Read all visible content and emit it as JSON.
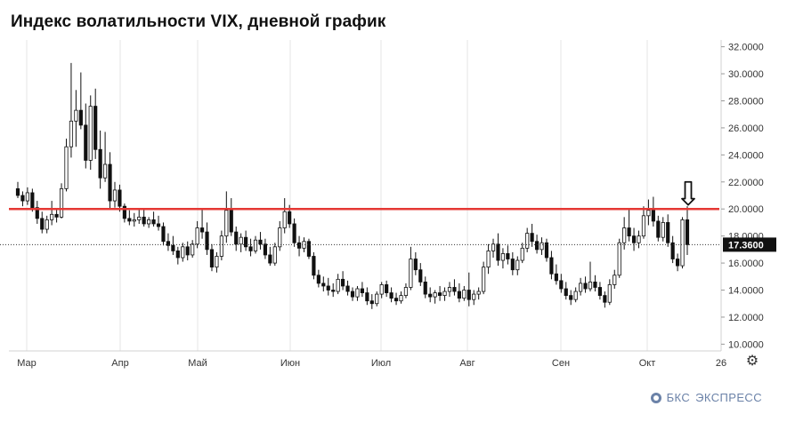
{
  "title": "Индекс волатильности VIX, дневной график",
  "brand": {
    "prefix": "БКС",
    "name": "ЭКСПРЕСС"
  },
  "icons": {
    "settings": "gear-icon",
    "arrow": "down-arrow-icon"
  },
  "colors": {
    "level_line": "#e53935",
    "candle": "#111111",
    "grid": "#e6e6e6",
    "price_label_bg": "#111111"
  },
  "chart_data": {
    "type": "candlestick",
    "title": "Индекс волатильности VIX, дневной график",
    "y_ticks": [
      "10.0000",
      "12.0000",
      "14.0000",
      "16.0000",
      "18.0000",
      "20.0000",
      "22.0000",
      "24.0000",
      "26.0000",
      "28.0000",
      "30.0000",
      "32.0000"
    ],
    "ylim": [
      9.5,
      32.5
    ],
    "x_ticks": [
      "Мар",
      "Апр",
      "Май",
      "Июн",
      "Июл",
      "Авг",
      "Сен",
      "Окт",
      "26"
    ],
    "grid": "vertical",
    "horizontal_level": 20.0,
    "current_price": 17.36,
    "current_price_label": "17.3600",
    "series": [
      {
        "name": "",
        "ohlc": [
          [
            21.5,
            22.0,
            20.8,
            21.0
          ],
          [
            21.0,
            21.3,
            20.2,
            20.6
          ],
          [
            20.6,
            21.6,
            20.3,
            21.2
          ],
          [
            21.2,
            21.5,
            19.8,
            20.1
          ],
          [
            20.1,
            20.6,
            18.9,
            19.3
          ],
          [
            19.3,
            19.8,
            18.2,
            18.5
          ],
          [
            18.5,
            19.5,
            18.2,
            19.2
          ],
          [
            19.2,
            20.6,
            18.8,
            19.6
          ],
          [
            19.6,
            20.0,
            19.0,
            19.4
          ],
          [
            19.4,
            21.9,
            19.3,
            21.5
          ],
          [
            21.5,
            25.2,
            21.3,
            24.6
          ],
          [
            24.6,
            30.8,
            23.8,
            26.5
          ],
          [
            26.5,
            28.8,
            24.6,
            27.3
          ],
          [
            27.3,
            30.1,
            25.9,
            26.2
          ],
          [
            26.2,
            27.8,
            23.0,
            23.6
          ],
          [
            23.6,
            28.4,
            22.9,
            27.6
          ],
          [
            27.6,
            28.9,
            23.7,
            24.4
          ],
          [
            24.4,
            25.8,
            21.5,
            22.3
          ],
          [
            22.3,
            25.7,
            22.0,
            23.3
          ],
          [
            23.3,
            24.2,
            20.0,
            20.6
          ],
          [
            20.6,
            22.0,
            20.1,
            21.4
          ],
          [
            21.4,
            21.8,
            19.8,
            20.2
          ],
          [
            20.2,
            20.4,
            19.0,
            19.3
          ],
          [
            19.3,
            19.9,
            18.8,
            19.1
          ],
          [
            19.1,
            19.7,
            18.7,
            19.2
          ],
          [
            19.2,
            20.0,
            18.9,
            19.4
          ],
          [
            19.4,
            20.0,
            18.7,
            18.9
          ],
          [
            18.9,
            19.4,
            18.6,
            19.2
          ],
          [
            19.2,
            19.8,
            18.7,
            18.9
          ],
          [
            18.9,
            19.5,
            18.4,
            18.7
          ],
          [
            18.7,
            19.0,
            17.3,
            17.6
          ],
          [
            17.6,
            18.2,
            16.9,
            17.3
          ],
          [
            17.3,
            18.0,
            16.6,
            16.9
          ],
          [
            16.9,
            17.2,
            15.9,
            16.4
          ],
          [
            16.4,
            17.5,
            16.1,
            17.2
          ],
          [
            17.2,
            17.6,
            16.2,
            16.6
          ],
          [
            16.6,
            17.7,
            16.4,
            17.4
          ],
          [
            17.4,
            19.1,
            17.1,
            18.6
          ],
          [
            18.6,
            20.0,
            17.8,
            18.3
          ],
          [
            18.3,
            19.0,
            16.6,
            17.0
          ],
          [
            17.0,
            17.4,
            15.4,
            15.7
          ],
          [
            15.7,
            16.8,
            15.3,
            16.5
          ],
          [
            16.5,
            18.4,
            16.2,
            18.0
          ],
          [
            18.0,
            21.3,
            17.5,
            19.9
          ],
          [
            19.9,
            20.8,
            18.0,
            18.3
          ],
          [
            18.3,
            18.7,
            16.9,
            17.4
          ],
          [
            17.4,
            18.2,
            16.8,
            17.9
          ],
          [
            17.9,
            18.4,
            16.9,
            17.2
          ],
          [
            17.2,
            17.8,
            16.5,
            16.9
          ],
          [
            16.9,
            18.0,
            16.7,
            17.7
          ],
          [
            17.7,
            18.3,
            17.0,
            17.4
          ],
          [
            17.4,
            17.8,
            16.3,
            16.6
          ],
          [
            16.6,
            17.2,
            15.8,
            16.0
          ],
          [
            16.0,
            17.5,
            15.8,
            17.2
          ],
          [
            17.2,
            19.1,
            16.9,
            18.6
          ],
          [
            18.6,
            20.8,
            18.2,
            19.8
          ],
          [
            19.8,
            20.3,
            18.6,
            18.9
          ],
          [
            18.9,
            19.3,
            17.2,
            17.5
          ],
          [
            17.5,
            18.0,
            16.5,
            17.1
          ],
          [
            17.1,
            17.9,
            16.8,
            17.6
          ],
          [
            17.6,
            17.8,
            16.3,
            16.5
          ],
          [
            16.5,
            16.8,
            14.8,
            15.1
          ],
          [
            15.1,
            15.5,
            14.2,
            14.5
          ],
          [
            14.5,
            15.0,
            13.9,
            14.3
          ],
          [
            14.3,
            14.9,
            13.6,
            14.0
          ],
          [
            14.0,
            14.5,
            13.5,
            13.9
          ],
          [
            13.9,
            15.2,
            13.7,
            14.8
          ],
          [
            14.8,
            15.4,
            14.0,
            14.3
          ],
          [
            14.3,
            14.7,
            13.6,
            13.9
          ],
          [
            13.9,
            14.2,
            13.2,
            13.5
          ],
          [
            13.5,
            14.3,
            13.2,
            14.1
          ],
          [
            14.1,
            14.6,
            13.5,
            13.8
          ],
          [
            13.8,
            14.2,
            12.9,
            13.2
          ],
          [
            13.2,
            13.7,
            12.6,
            13.0
          ],
          [
            13.0,
            13.9,
            12.8,
            13.7
          ],
          [
            13.7,
            14.6,
            13.4,
            14.4
          ],
          [
            14.4,
            14.7,
            13.5,
            13.8
          ],
          [
            13.8,
            14.2,
            13.1,
            13.4
          ],
          [
            13.4,
            13.8,
            12.9,
            13.2
          ],
          [
            13.2,
            13.9,
            13.0,
            13.6
          ],
          [
            13.6,
            14.5,
            13.4,
            14.2
          ],
          [
            14.2,
            17.2,
            14.0,
            16.3
          ],
          [
            16.3,
            16.8,
            15.1,
            15.5
          ],
          [
            15.5,
            16.0,
            14.3,
            14.6
          ],
          [
            14.6,
            15.0,
            13.4,
            13.7
          ],
          [
            13.7,
            14.2,
            13.1,
            13.5
          ],
          [
            13.5,
            14.0,
            13.0,
            13.8
          ],
          [
            13.8,
            14.3,
            13.2,
            13.6
          ],
          [
            13.6,
            14.2,
            13.2,
            13.9
          ],
          [
            13.9,
            14.6,
            13.5,
            14.2
          ],
          [
            14.2,
            14.8,
            13.6,
            13.9
          ],
          [
            13.9,
            14.5,
            13.1,
            13.4
          ],
          [
            13.4,
            14.3,
            13.2,
            14.0
          ],
          [
            14.0,
            15.3,
            12.8,
            13.3
          ],
          [
            13.3,
            14.0,
            12.9,
            13.7
          ],
          [
            13.7,
            14.2,
            13.3,
            13.9
          ],
          [
            13.9,
            16.1,
            13.7,
            15.7
          ],
          [
            15.7,
            17.4,
            15.2,
            16.9
          ],
          [
            16.9,
            17.8,
            16.4,
            17.4
          ],
          [
            17.4,
            18.2,
            15.8,
            16.2
          ],
          [
            16.2,
            17.1,
            15.6,
            16.7
          ],
          [
            16.7,
            17.3,
            15.9,
            16.3
          ],
          [
            16.3,
            16.8,
            15.1,
            15.5
          ],
          [
            15.5,
            16.5,
            15.1,
            16.2
          ],
          [
            16.2,
            17.5,
            16.0,
            17.1
          ],
          [
            17.1,
            18.6,
            16.8,
            18.2
          ],
          [
            18.2,
            18.9,
            17.2,
            17.6
          ],
          [
            17.6,
            18.1,
            16.7,
            17.0
          ],
          [
            17.0,
            17.9,
            16.6,
            17.5
          ],
          [
            17.5,
            17.8,
            16.1,
            16.4
          ],
          [
            16.4,
            16.9,
            14.8,
            15.2
          ],
          [
            15.2,
            15.9,
            14.4,
            14.7
          ],
          [
            14.7,
            15.2,
            13.8,
            14.1
          ],
          [
            14.1,
            14.6,
            13.3,
            13.6
          ],
          [
            13.6,
            14.0,
            12.9,
            13.3
          ],
          [
            13.3,
            14.2,
            13.1,
            13.9
          ],
          [
            13.9,
            14.9,
            13.6,
            14.5
          ],
          [
            14.5,
            15.0,
            13.8,
            14.1
          ],
          [
            14.1,
            16.1,
            13.9,
            14.6
          ],
          [
            14.6,
            15.1,
            13.9,
            14.2
          ],
          [
            14.2,
            14.6,
            13.3,
            13.6
          ],
          [
            13.6,
            13.9,
            12.7,
            13.1
          ],
          [
            13.1,
            14.8,
            12.9,
            14.4
          ],
          [
            14.4,
            15.5,
            14.1,
            15.1
          ],
          [
            15.1,
            17.8,
            14.9,
            17.5
          ],
          [
            17.5,
            19.4,
            17.0,
            18.6
          ],
          [
            18.6,
            20.0,
            17.6,
            18.0
          ],
          [
            18.0,
            18.6,
            16.9,
            17.5
          ],
          [
            17.5,
            18.4,
            17.1,
            18.0
          ],
          [
            18.0,
            20.2,
            17.8,
            19.5
          ],
          [
            19.5,
            20.7,
            18.8,
            19.9
          ],
          [
            19.9,
            20.9,
            18.7,
            19.1
          ],
          [
            19.1,
            19.5,
            17.6,
            17.9
          ],
          [
            17.9,
            19.4,
            17.6,
            19.0
          ],
          [
            19.0,
            19.6,
            17.2,
            17.5
          ],
          [
            17.5,
            18.0,
            16.0,
            16.3
          ],
          [
            16.3,
            16.7,
            15.4,
            15.8
          ],
          [
            15.8,
            19.4,
            15.6,
            19.2
          ],
          [
            19.2,
            20.2,
            16.6,
            17.36
          ]
        ]
      }
    ]
  }
}
